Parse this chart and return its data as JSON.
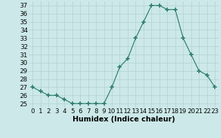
{
  "x": [
    0,
    1,
    2,
    3,
    4,
    5,
    6,
    7,
    8,
    9,
    10,
    11,
    12,
    13,
    14,
    15,
    16,
    17,
    18,
    19,
    20,
    21,
    22,
    23
  ],
  "y": [
    27,
    26.5,
    26,
    26,
    25.5,
    25,
    25,
    25,
    25,
    25,
    27,
    29.5,
    30.5,
    33,
    35,
    37,
    37,
    36.5,
    36.5,
    33,
    31,
    29,
    28.5,
    27
  ],
  "line_color": "#2d7d6e",
  "marker": "+",
  "marker_size": 4,
  "bg_color": "#cce8e8",
  "grid_color": "#b0d0d0",
  "xlabel": "Humidex (Indice chaleur)",
  "xlim": [
    -0.5,
    23.5
  ],
  "ylim": [
    24.5,
    37.5
  ],
  "yticks": [
    25,
    26,
    27,
    28,
    29,
    30,
    31,
    32,
    33,
    34,
    35,
    36,
    37
  ],
  "xticks": [
    0,
    1,
    2,
    3,
    4,
    5,
    6,
    7,
    8,
    9,
    10,
    11,
    12,
    13,
    14,
    15,
    16,
    17,
    18,
    19,
    20,
    21,
    22,
    23
  ],
  "tick_fontsize": 6.5,
  "xlabel_fontsize": 7.5
}
